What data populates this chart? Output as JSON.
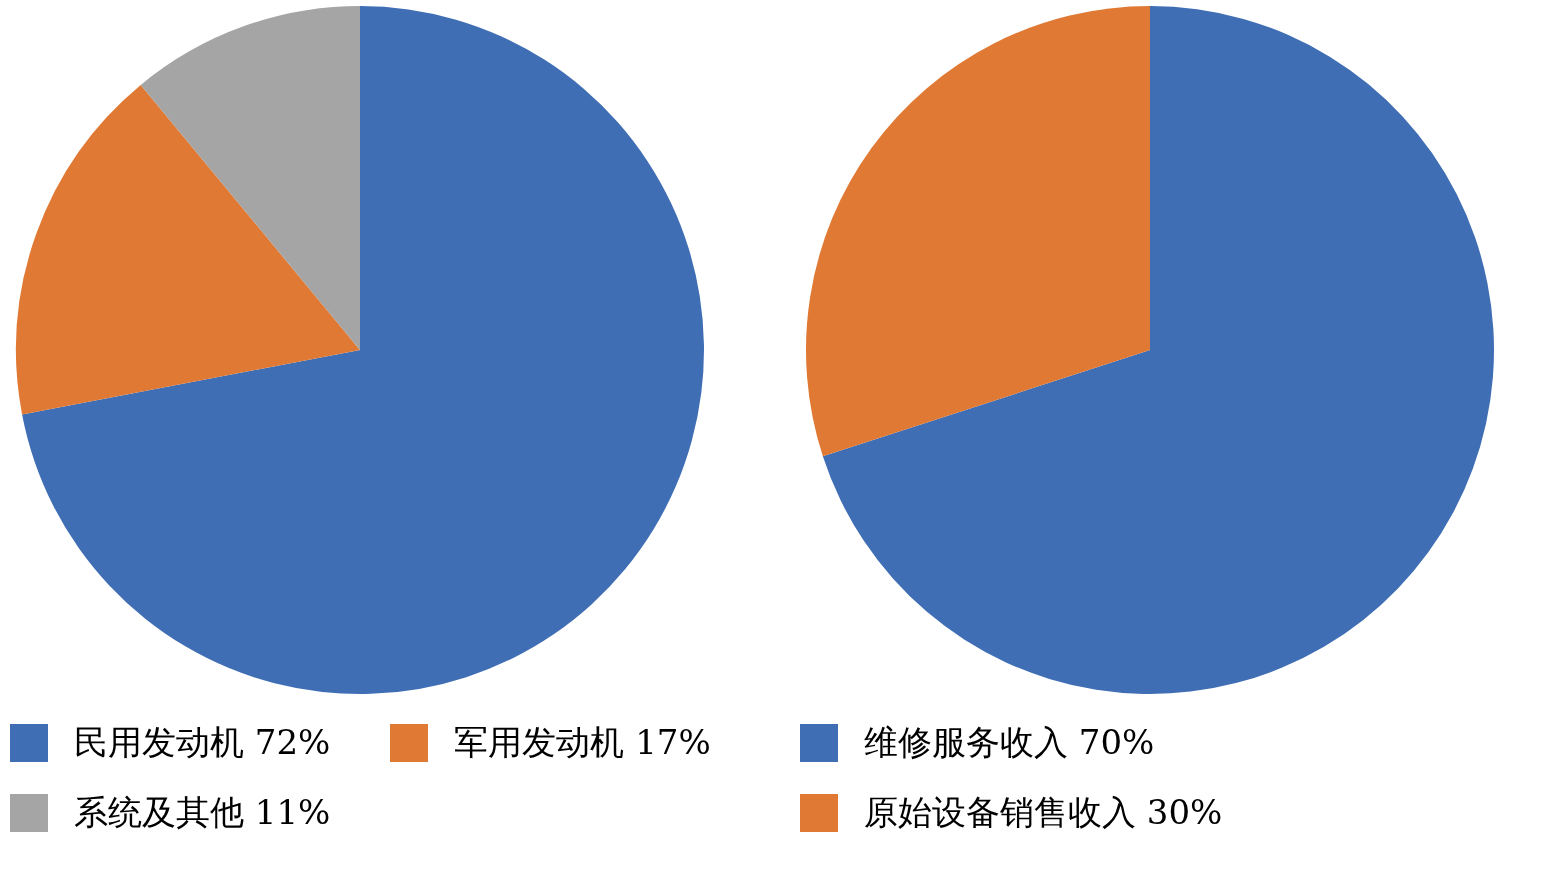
{
  "chart_data": [
    {
      "type": "pie",
      "categories": [
        "民用发动机",
        "军用发动机",
        "系统及其他"
      ],
      "values": [
        72,
        17,
        11
      ],
      "value_labels": [
        "72%",
        "17%",
        "11%"
      ],
      "colors": [
        "#3f6eb5",
        "#e07933",
        "#a5a5a6"
      ],
      "legend": "bottom"
    },
    {
      "type": "pie",
      "categories": [
        "维修服务收入",
        "原始设备销售收入"
      ],
      "values": [
        70,
        30
      ],
      "value_labels": [
        "70%",
        "30%"
      ],
      "colors": [
        "#3f6eb5",
        "#e07933"
      ],
      "legend": "bottom"
    }
  ]
}
